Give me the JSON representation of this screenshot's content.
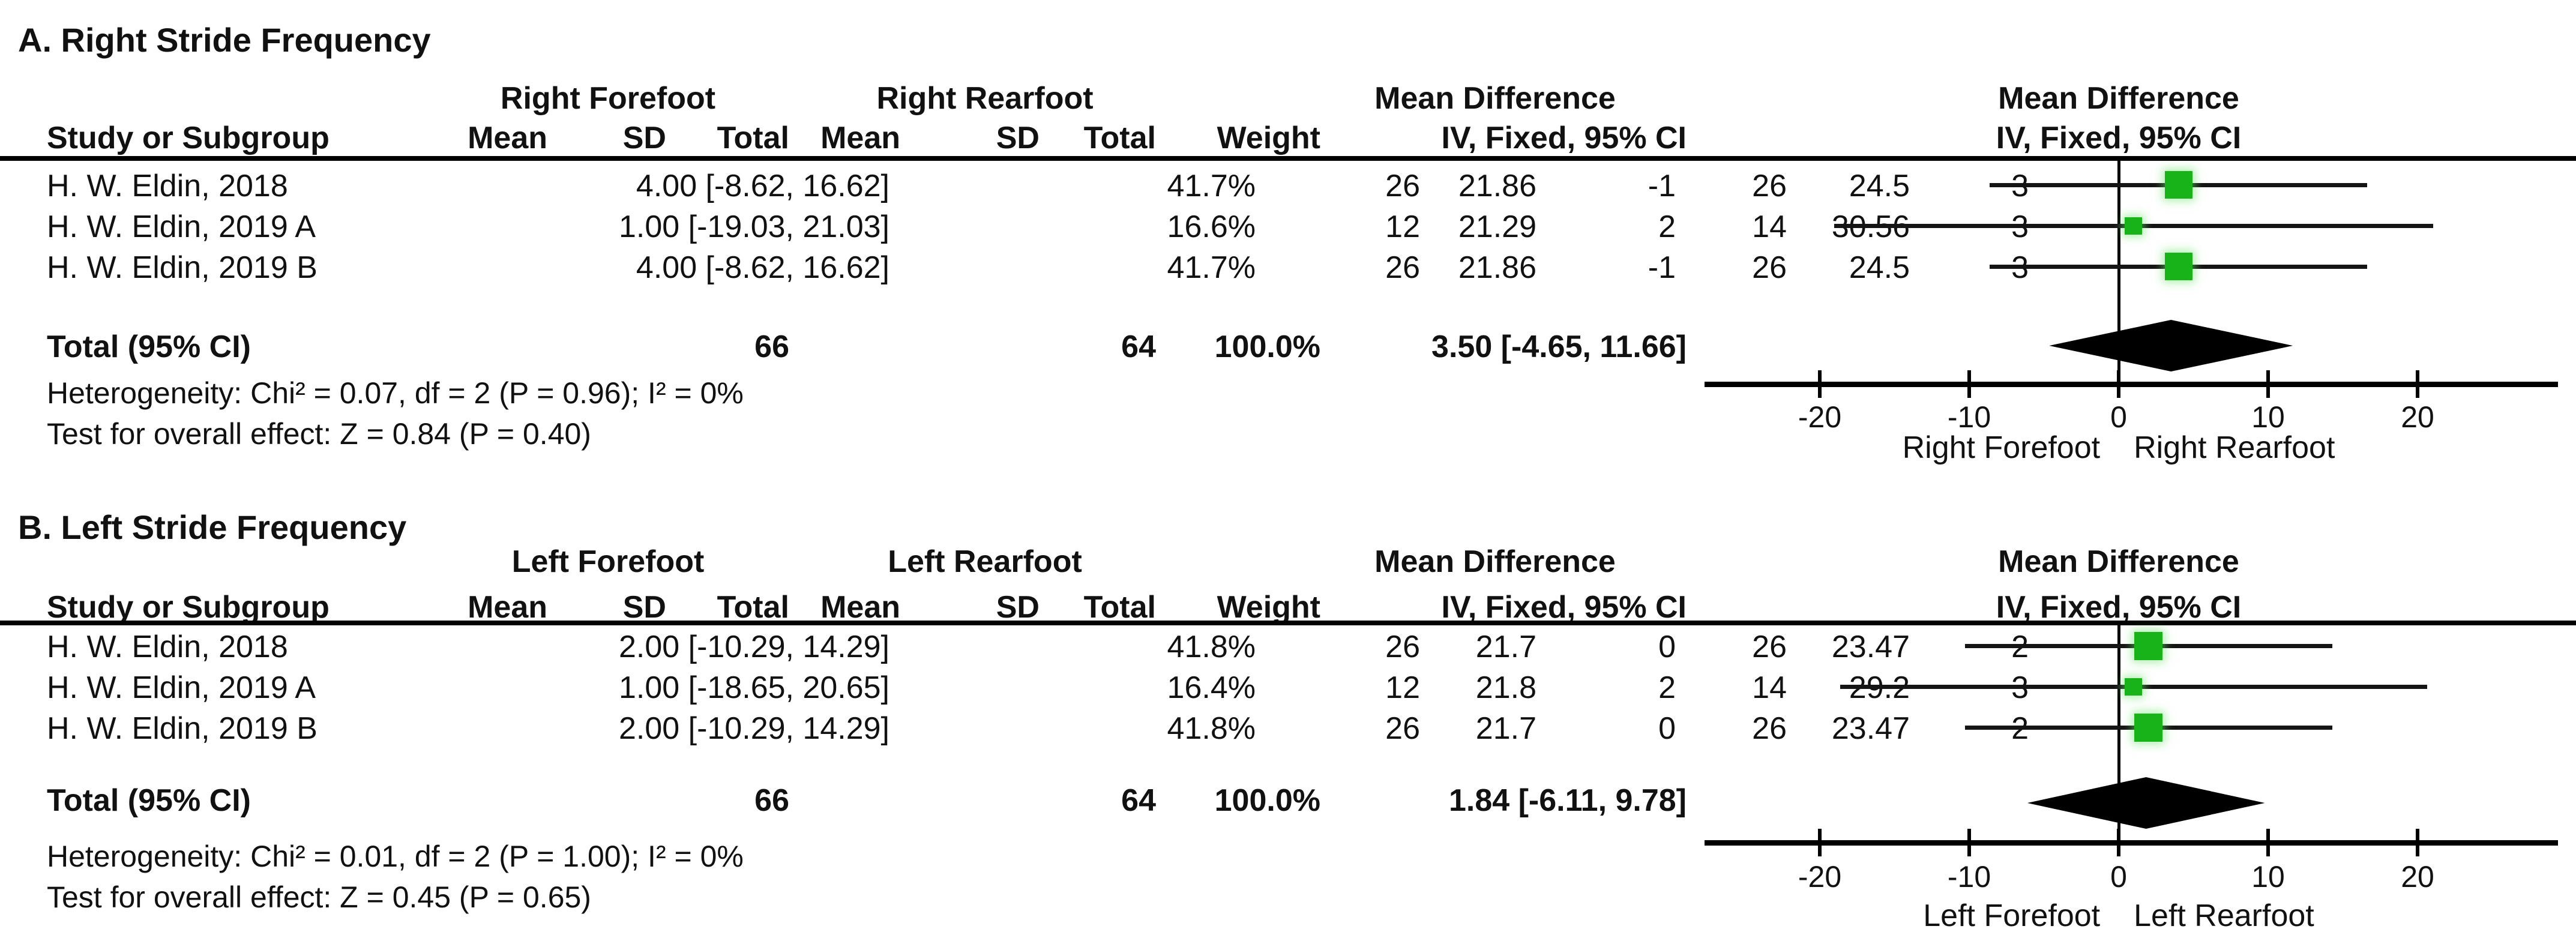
{
  "colors": {
    "square_green": "#18B318",
    "diamond_black": "#000000",
    "line_black": "#000000"
  },
  "chart_data": [
    {
      "type": "forest",
      "panel_label": "A",
      "title": "A. Right Stride Frequency",
      "group_headers": [
        "Right Forefoot",
        "Right Rearfoot",
        "Mean Difference"
      ],
      "plot_header": [
        "Mean Difference",
        "IV, Fixed, 95% CI"
      ],
      "table_columns": [
        "Study or Subgroup",
        "Mean",
        "SD",
        "Total",
        "Mean",
        "SD",
        "Total",
        "Weight",
        "IV, Fixed, 95% CI"
      ],
      "studies": [
        {
          "study": "H. W. Eldin, 2018",
          "mean1": 3,
          "sd1": 24.5,
          "total1": 26,
          "mean2": -1,
          "sd2": 21.86,
          "total2": 26,
          "weight": "41.7%",
          "weight_value": 41.7,
          "md": 4.0,
          "ci_low": -8.62,
          "ci_high": 16.62,
          "ci_text": "4.00 [-8.62, 16.62]"
        },
        {
          "study": "H. W. Eldin, 2019 A",
          "mean1": 3,
          "sd1": 30.56,
          "total1": 14,
          "mean2": 2,
          "sd2": 21.29,
          "total2": 12,
          "weight": "16.6%",
          "weight_value": 16.6,
          "md": 1.0,
          "ci_low": -19.03,
          "ci_high": 21.03,
          "ci_text": "1.00 [-19.03, 21.03]"
        },
        {
          "study": "H. W. Eldin, 2019 B",
          "mean1": 3,
          "sd1": 24.5,
          "total1": 26,
          "mean2": -1,
          "sd2": 21.86,
          "total2": 26,
          "weight": "41.7%",
          "weight_value": 41.7,
          "md": 4.0,
          "ci_low": -8.62,
          "ci_high": 16.62,
          "ci_text": "4.00 [-8.62, 16.62]"
        }
      ],
      "total": {
        "label": "Total (95% CI)",
        "total1": 66,
        "total2": 64,
        "weight": "100.0%",
        "md": 3.5,
        "ci_low": -4.65,
        "ci_high": 11.66,
        "ci_text": "3.50 [-4.65, 11.66]"
      },
      "heterogeneity": "Heterogeneity: Chi² = 0.07, df = 2 (P = 0.96); I² = 0%",
      "overall_effect": "Test for overall effect: Z = 0.84 (P = 0.40)",
      "axis": {
        "min": -25,
        "max": 25,
        "ticks": [
          -20,
          -10,
          0,
          10,
          20
        ]
      },
      "axis_labels": [
        "Right Forefoot",
        "Right Rearfoot"
      ]
    },
    {
      "type": "forest",
      "panel_label": "B",
      "title": "B. Left Stride Frequency",
      "group_headers": [
        "Left Forefoot",
        "Left Rearfoot",
        "Mean Difference"
      ],
      "plot_header": [
        "Mean Difference",
        "IV, Fixed, 95% CI"
      ],
      "table_columns": [
        "Study or Subgroup",
        "Mean",
        "SD",
        "Total",
        "Mean",
        "SD",
        "Total",
        "Weight",
        "IV, Fixed, 95% CI"
      ],
      "studies": [
        {
          "study": "H. W. Eldin, 2018",
          "mean1": 2,
          "sd1": 23.47,
          "total1": 26,
          "mean2": 0,
          "sd2": 21.7,
          "total2": 26,
          "weight": "41.8%",
          "weight_value": 41.8,
          "md": 2.0,
          "ci_low": -10.29,
          "ci_high": 14.29,
          "ci_text": "2.00 [-10.29, 14.29]"
        },
        {
          "study": "H. W. Eldin, 2019 A",
          "mean1": 3,
          "sd1": 29.2,
          "total1": 14,
          "mean2": 2,
          "sd2": 21.8,
          "total2": 12,
          "weight": "16.4%",
          "weight_value": 16.4,
          "md": 1.0,
          "ci_low": -18.65,
          "ci_high": 20.65,
          "ci_text": "1.00 [-18.65, 20.65]"
        },
        {
          "study": "H. W. Eldin, 2019 B",
          "mean1": 2,
          "sd1": 23.47,
          "total1": 26,
          "mean2": 0,
          "sd2": 21.7,
          "total2": 26,
          "weight": "41.8%",
          "weight_value": 41.8,
          "md": 2.0,
          "ci_low": -10.29,
          "ci_high": 14.29,
          "ci_text": "2.00 [-10.29, 14.29]"
        }
      ],
      "total": {
        "label": "Total (95% CI)",
        "total1": 66,
        "total2": 64,
        "weight": "100.0%",
        "md": 1.84,
        "ci_low": -6.11,
        "ci_high": 9.78,
        "ci_text": "1.84 [-6.11, 9.78]"
      },
      "heterogeneity": "Heterogeneity: Chi² = 0.01, df = 2 (P = 1.00); I² = 0%",
      "overall_effect": "Test for overall effect: Z = 0.45 (P = 0.65)",
      "axis": {
        "min": -25,
        "max": 25,
        "ticks": [
          -20,
          -10,
          0,
          10,
          20
        ]
      },
      "axis_labels": [
        "Left Forefoot",
        "Left Rearfoot"
      ]
    }
  ]
}
